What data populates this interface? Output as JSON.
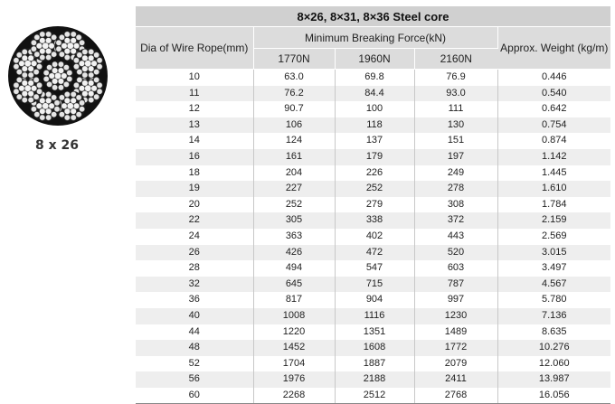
{
  "figure": {
    "caption": "8 x 26"
  },
  "table": {
    "title": "8×26,  8×31,  8×36  Steel core",
    "col_dia": "Dia of Wire Rope(mm)",
    "col_force_group": "Minimum Breaking Force(kN)",
    "col_weight": "Approx. Weight (kg/m)",
    "force_grades": [
      "1770N",
      "1960N",
      "2160N"
    ],
    "rows": [
      [
        "10",
        "63.0",
        "69.8",
        "76.9",
        "0.446"
      ],
      [
        "11",
        "76.2",
        "84.4",
        "93.0",
        "0.540"
      ],
      [
        "12",
        "90.7",
        "100",
        "111",
        "0.642"
      ],
      [
        "13",
        "106",
        "118",
        "130",
        "0.754"
      ],
      [
        "14",
        "124",
        "137",
        "151",
        "0.874"
      ],
      [
        "16",
        "161",
        "179",
        "197",
        "1.142"
      ],
      [
        "18",
        "204",
        "226",
        "249",
        "1.445"
      ],
      [
        "19",
        "227",
        "252",
        "278",
        "1.610"
      ],
      [
        "20",
        "252",
        "279",
        "308",
        "1.784"
      ],
      [
        "22",
        "305",
        "338",
        "372",
        "2.159"
      ],
      [
        "24",
        "363",
        "402",
        "443",
        "2.569"
      ],
      [
        "26",
        "426",
        "472",
        "520",
        "3.015"
      ],
      [
        "28",
        "494",
        "547",
        "603",
        "3.497"
      ],
      [
        "32",
        "645",
        "715",
        "787",
        "4.567"
      ],
      [
        "36",
        "817",
        "904",
        "997",
        "5.780"
      ],
      [
        "40",
        "1008",
        "1116",
        "1230",
        "7.136"
      ],
      [
        "44",
        "1220",
        "1351",
        "1489",
        "8.635"
      ],
      [
        "48",
        "1452",
        "1608",
        "1772",
        "10.276"
      ],
      [
        "52",
        "1704",
        "1887",
        "2079",
        "12.060"
      ],
      [
        "56",
        "1976",
        "2188",
        "2411",
        "13.987"
      ],
      [
        "60",
        "2268",
        "2512",
        "2768",
        "16.056"
      ]
    ]
  }
}
